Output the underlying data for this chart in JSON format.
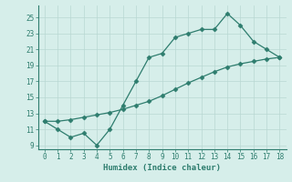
{
  "xlabel": "Humidex (Indice chaleur)",
  "line1_x": [
    0,
    1,
    2,
    3,
    4,
    5,
    6,
    7,
    8,
    9,
    10,
    11,
    12,
    13,
    14,
    15,
    16,
    17,
    18
  ],
  "line1_y": [
    12.0,
    11.0,
    10.0,
    10.5,
    9.0,
    11.0,
    14.0,
    17.0,
    20.0,
    20.5,
    22.5,
    23.0,
    23.5,
    23.5,
    25.5,
    24.0,
    22.0,
    21.0,
    20.0
  ],
  "line2_x": [
    0,
    1,
    2,
    3,
    4,
    5,
    6,
    7,
    8,
    9,
    10,
    11,
    12,
    13,
    14,
    15,
    16,
    17,
    18
  ],
  "line2_y": [
    12.0,
    12.0,
    12.2,
    12.5,
    12.8,
    13.1,
    13.5,
    14.0,
    14.5,
    15.2,
    16.0,
    16.8,
    17.5,
    18.2,
    18.8,
    19.2,
    19.5,
    19.8,
    20.0
  ],
  "line_color": "#2e7d6e",
  "marker": "D",
  "marker_size": 2.5,
  "xlim": [
    -0.5,
    18.5
  ],
  "ylim": [
    8.5,
    26.5
  ],
  "yticks": [
    9,
    11,
    13,
    15,
    17,
    19,
    21,
    23,
    25
  ],
  "xticks": [
    0,
    1,
    2,
    3,
    4,
    5,
    6,
    7,
    8,
    9,
    10,
    11,
    12,
    13,
    14,
    15,
    16,
    17,
    18
  ],
  "bg_color": "#d6eeea",
  "grid_color": "#b8d8d2",
  "font_color": "#2e7d6e",
  "tick_fontsize": 5.5,
  "xlabel_fontsize": 6.5
}
